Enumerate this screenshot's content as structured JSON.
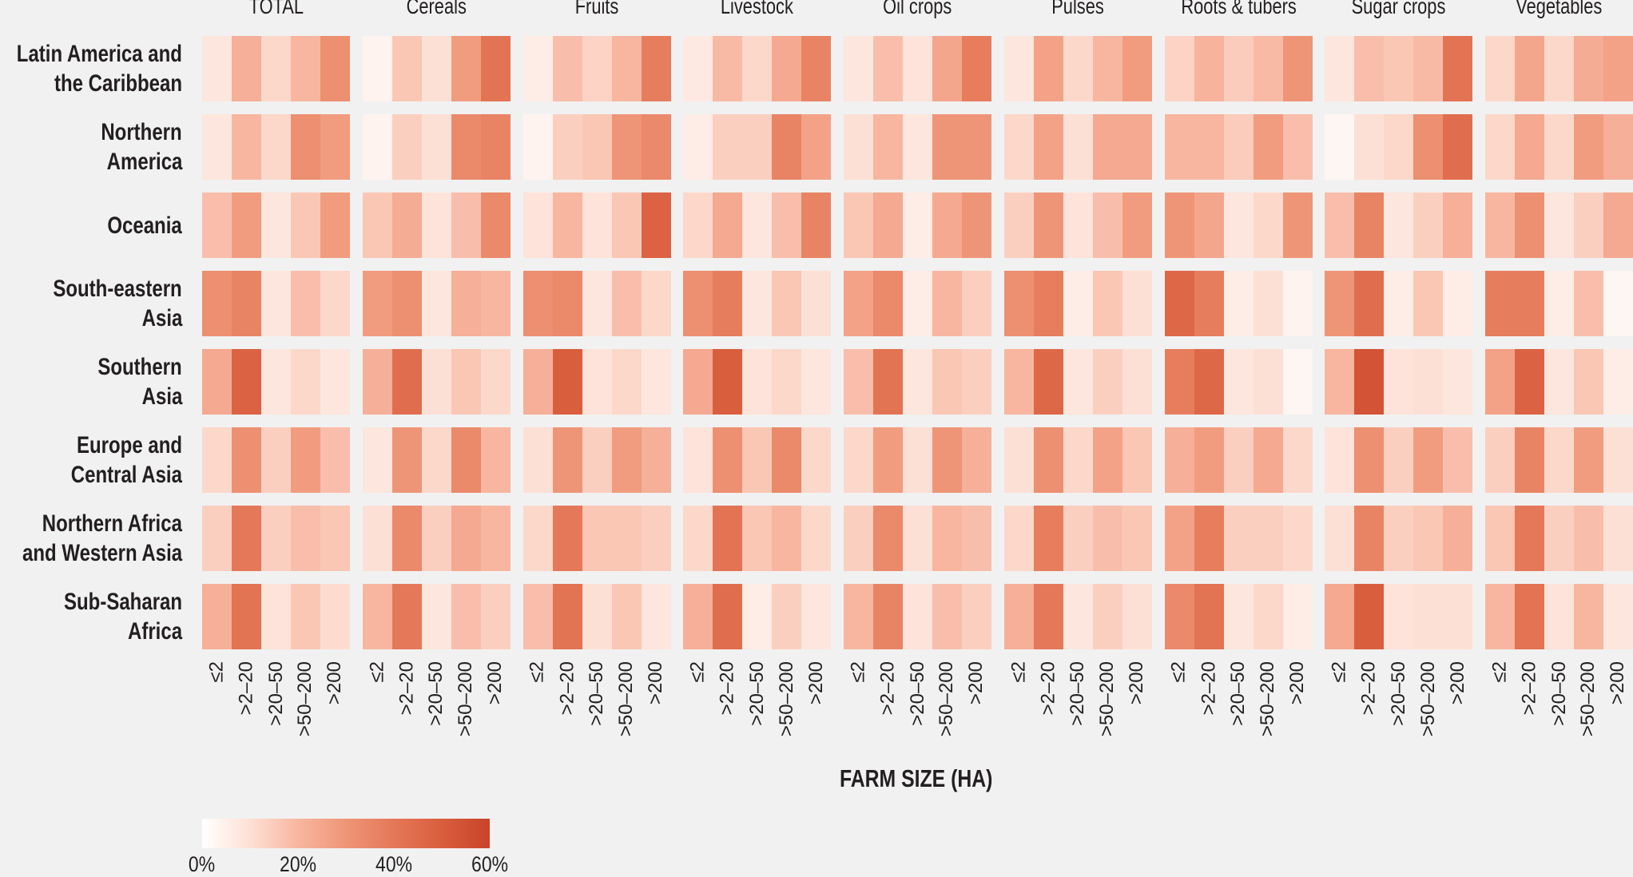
{
  "chart_data": {
    "type": "heatmap",
    "title": "",
    "xlabel": "FARM SIZE (HA)",
    "ylabel": "",
    "value_unit": "%",
    "color_scale": {
      "min": 0,
      "max": 60,
      "stops": [
        {
          "value": 0,
          "color": "#ffffff"
        },
        {
          "value": 10,
          "color": "#fde0d5"
        },
        {
          "value": 20,
          "color": "#f8b6a0"
        },
        {
          "value": 30,
          "color": "#ef9577"
        },
        {
          "value": 40,
          "color": "#e47858"
        },
        {
          "value": 50,
          "color": "#d95e3e"
        },
        {
          "value": 60,
          "color": "#c8432a"
        }
      ],
      "tick_labels": [
        "0%",
        "20%",
        "40%",
        "60%"
      ],
      "tick_values": [
        0,
        20,
        40,
        60
      ]
    },
    "groups": [
      "TOTAL",
      "Cereals",
      "Fruits",
      "Livestock",
      "Oil crops",
      "Pulses",
      "Roots & tubers",
      "Sugar crops",
      "Vegetables"
    ],
    "farm_size_categories": [
      "≤2",
      ">2–20",
      ">20–50",
      ">50–200",
      ">200"
    ],
    "regions": [
      {
        "name": "Latin America and the Caribbean",
        "lines": [
          "Latin America and",
          "the Caribbean"
        ]
      },
      {
        "name": "Northern America",
        "lines": [
          "Northern",
          "America"
        ]
      },
      {
        "name": "Oceania",
        "lines": [
          "Oceania"
        ]
      },
      {
        "name": "South-eastern Asia",
        "lines": [
          "South-eastern",
          "Asia"
        ]
      },
      {
        "name": "Southern Asia",
        "lines": [
          "Southern",
          "Asia"
        ]
      },
      {
        "name": "Europe and Central Asia",
        "lines": [
          "Europe and",
          "Central Asia"
        ]
      },
      {
        "name": "Northern Africa and Western Asia",
        "lines": [
          "Northern Africa",
          "and Western Asia"
        ]
      },
      {
        "name": "Sub-Saharan Africa",
        "lines": [
          "Sub-Saharan",
          "Africa"
        ]
      }
    ],
    "values": {
      "Latin America and the Caribbean": {
        "TOTAL": [
          8,
          22,
          12,
          20,
          32
        ],
        "Cereals": [
          4,
          16,
          10,
          28,
          42
        ],
        "Fruits": [
          6,
          18,
          13,
          20,
          38
        ],
        "Livestock": [
          7,
          19,
          12,
          24,
          36
        ],
        "Oil crops": [
          8,
          18,
          9,
          25,
          38
        ],
        "Pulses": [
          8,
          26,
          12,
          20,
          28
        ],
        "Roots & tubers": [
          13,
          21,
          15,
          19,
          30
        ],
        "Sugar crops": [
          8,
          18,
          16,
          19,
          42
        ],
        "Vegetables": [
          12,
          25,
          12,
          23,
          26
        ]
      },
      "Northern America": {
        "TOTAL": [
          8,
          20,
          12,
          32,
          28
        ],
        "Cereals": [
          4,
          14,
          10,
          34,
          36
        ],
        "Fruits": [
          4,
          14,
          16,
          30,
          34
        ],
        "Livestock": [
          6,
          14,
          14,
          36,
          26
        ],
        "Oil crops": [
          10,
          20,
          8,
          30,
          30
        ],
        "Pulses": [
          12,
          26,
          10,
          24,
          24
        ],
        "Roots & tubers": [
          20,
          20,
          15,
          28,
          18
        ],
        "Sugar crops": [
          3,
          10,
          12,
          32,
          44
        ],
        "Vegetables": [
          12,
          24,
          12,
          28,
          22
        ]
      },
      "Oceania": {
        "TOTAL": [
          18,
          28,
          8,
          16,
          28
        ],
        "Cereals": [
          16,
          23,
          9,
          18,
          34
        ],
        "Fruits": [
          9,
          20,
          9,
          16,
          48
        ],
        "Livestock": [
          12,
          24,
          8,
          18,
          36
        ],
        "Oil crops": [
          16,
          24,
          6,
          24,
          30
        ],
        "Pulses": [
          14,
          30,
          9,
          18,
          28
        ],
        "Roots & tubers": [
          30,
          25,
          8,
          12,
          30
        ],
        "Sugar crops": [
          18,
          36,
          8,
          14,
          22
        ],
        "Vegetables": [
          20,
          32,
          8,
          14,
          24
        ]
      },
      "South-eastern Asia": {
        "TOTAL": [
          32,
          36,
          8,
          18,
          12
        ],
        "Cereals": [
          28,
          32,
          8,
          22,
          20
        ],
        "Fruits": [
          32,
          34,
          8,
          18,
          12
        ],
        "Livestock": [
          32,
          38,
          8,
          16,
          10
        ],
        "Oil crops": [
          26,
          34,
          6,
          20,
          14
        ],
        "Pulses": [
          32,
          38,
          6,
          16,
          10
        ],
        "Roots & tubers": [
          46,
          38,
          6,
          10,
          4
        ],
        "Sugar crops": [
          30,
          44,
          6,
          16,
          6
        ],
        "Vegetables": [
          38,
          38,
          6,
          18,
          3
        ]
      },
      "Southern Asia": {
        "TOTAL": [
          24,
          48,
          8,
          12,
          8
        ],
        "Cereals": [
          22,
          44,
          10,
          16,
          12
        ],
        "Fruits": [
          22,
          50,
          9,
          12,
          8
        ],
        "Livestock": [
          24,
          50,
          9,
          12,
          8
        ],
        "Oil crops": [
          18,
          42,
          8,
          16,
          14
        ],
        "Pulses": [
          20,
          46,
          8,
          14,
          10
        ],
        "Roots & tubers": [
          38,
          46,
          8,
          10,
          3
        ],
        "Sugar crops": [
          20,
          54,
          9,
          10,
          8
        ],
        "Vegetables": [
          26,
          48,
          8,
          16,
          6
        ]
      },
      "Europe and Central Asia": {
        "TOTAL": [
          12,
          32,
          14,
          28,
          18
        ],
        "Cereals": [
          8,
          30,
          12,
          34,
          20
        ],
        "Fruits": [
          10,
          30,
          14,
          28,
          22
        ],
        "Livestock": [
          9,
          32,
          16,
          34,
          12
        ],
        "Oil crops": [
          12,
          28,
          10,
          30,
          22
        ],
        "Pulses": [
          10,
          32,
          12,
          26,
          16
        ],
        "Roots & tubers": [
          22,
          28,
          14,
          24,
          12
        ],
        "Sugar crops": [
          9,
          32,
          14,
          28,
          18
        ],
        "Vegetables": [
          14,
          36,
          12,
          28,
          10
        ]
      },
      "Northern Africa and Western Asia": {
        "TOTAL": [
          14,
          40,
          14,
          18,
          16
        ],
        "Cereals": [
          10,
          34,
          14,
          24,
          20
        ],
        "Fruits": [
          12,
          40,
          16,
          16,
          14
        ],
        "Livestock": [
          12,
          42,
          16,
          20,
          12
        ],
        "Oil crops": [
          14,
          34,
          10,
          20,
          18
        ],
        "Pulses": [
          12,
          38,
          14,
          18,
          16
        ],
        "Roots & tubers": [
          26,
          38,
          14,
          14,
          12
        ],
        "Sugar crops": [
          10,
          36,
          14,
          16,
          22
        ],
        "Vegetables": [
          16,
          40,
          14,
          18,
          10
        ]
      },
      "Sub-Saharan Africa": {
        "TOTAL": [
          22,
          42,
          9,
          16,
          11
        ],
        "Cereals": [
          20,
          40,
          8,
          18,
          14
        ],
        "Fruits": [
          18,
          42,
          10,
          16,
          8
        ],
        "Livestock": [
          22,
          44,
          6,
          14,
          8
        ],
        "Oil crops": [
          20,
          36,
          9,
          18,
          14
        ],
        "Pulses": [
          22,
          40,
          8,
          14,
          10
        ],
        "Roots & tubers": [
          34,
          42,
          8,
          12,
          6
        ],
        "Sugar crops": [
          24,
          50,
          9,
          10,
          10
        ],
        "Vegetables": [
          20,
          42,
          9,
          20,
          8
        ]
      }
    },
    "legend_position": "bottom-left",
    "grid": false
  }
}
